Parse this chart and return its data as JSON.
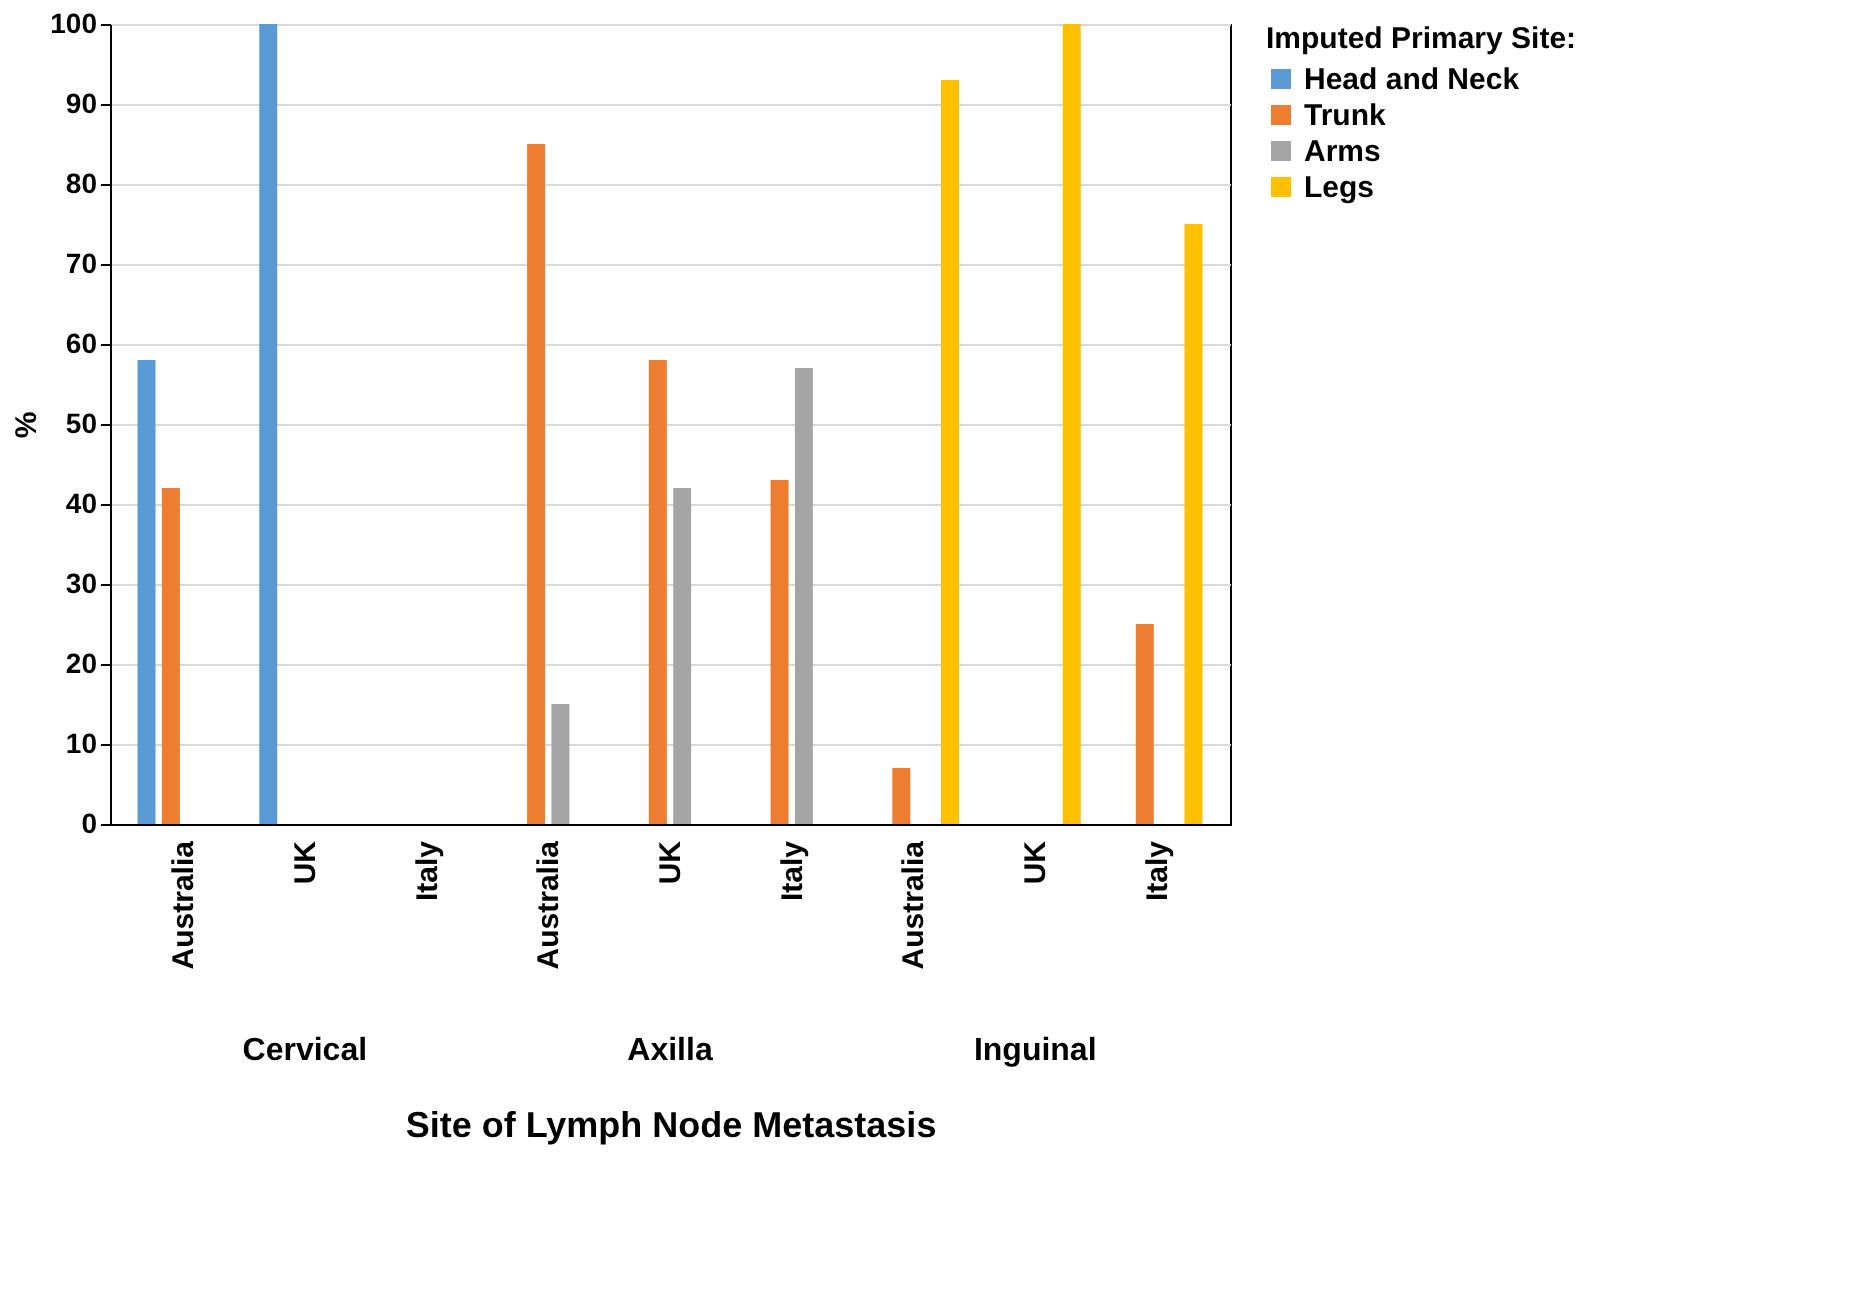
{
  "chart_data": {
    "type": "bar",
    "xlabel": "Site of Lymph Node Metastasis",
    "ylabel": "%",
    "legend_title": "Imputed Primary Site:",
    "categories": [
      "Australia",
      "UK",
      "Italy",
      "Australia",
      "UK",
      "Italy",
      "Australia",
      "UK",
      "Italy"
    ],
    "series": [
      {
        "name": "Head and Neck",
        "color": "#5b9bd5",
        "values": [
          58,
          100,
          null,
          null,
          null,
          null,
          null,
          null,
          null
        ]
      },
      {
        "name": "Trunk",
        "color": "#ed7d31",
        "values": [
          42,
          null,
          null,
          85,
          58,
          43,
          7,
          null,
          25
        ]
      },
      {
        "name": "Arms",
        "color": "#a5a5a5",
        "values": [
          null,
          null,
          null,
          15,
          42,
          57,
          null,
          null,
          null
        ]
      },
      {
        "name": "Legs",
        "color": "#ffc000",
        "values": [
          null,
          null,
          null,
          null,
          null,
          null,
          93,
          100,
          75
        ]
      }
    ],
    "annotations": [
      "Cervical",
      "Axilla",
      "Inguinal"
    ],
    "ylim": [
      0,
      100
    ],
    "yticks": [
      0,
      10,
      20,
      30,
      40,
      50,
      60,
      70,
      80,
      90,
      100
    ],
    "grid": "y",
    "legend": "right"
  }
}
